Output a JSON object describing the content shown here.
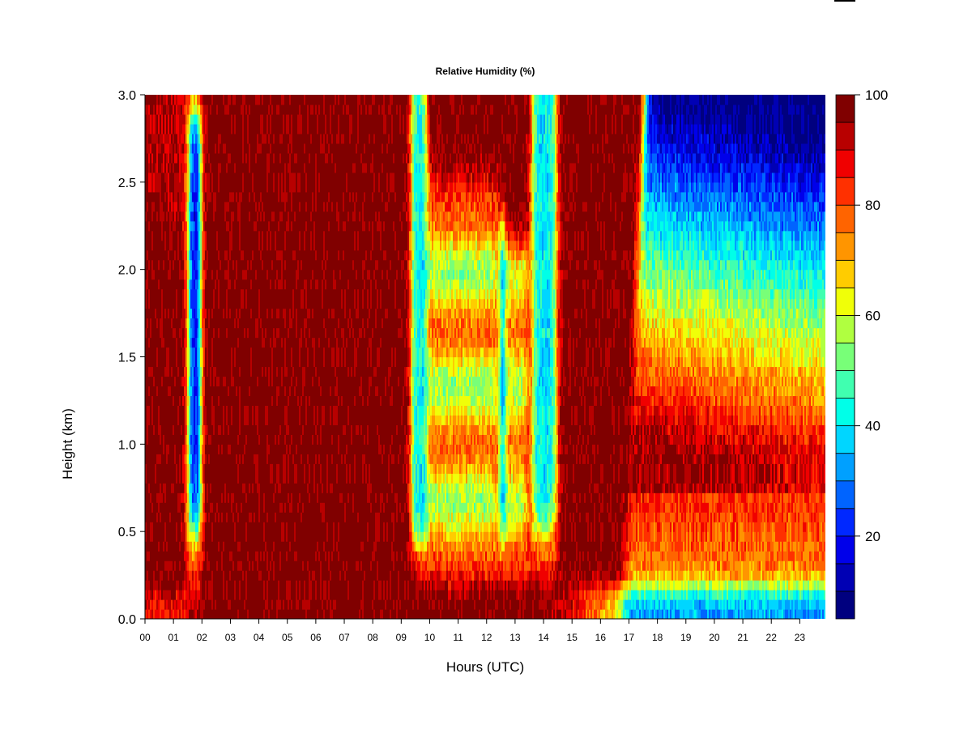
{
  "chart_data": {
    "type": "heatmap",
    "title": "Relative Humidity (%)",
    "xlabel": "Hours (UTC)",
    "ylabel": "Height (km)",
    "xlim": [
      0,
      23.9
    ],
    "ylim": [
      0,
      3
    ],
    "x_ticks": [
      "00",
      "01",
      "02",
      "03",
      "04",
      "05",
      "06",
      "07",
      "08",
      "09",
      "10",
      "11",
      "12",
      "13",
      "14",
      "15",
      "16",
      "17",
      "18",
      "19",
      "20",
      "21",
      "22",
      "23"
    ],
    "y_ticks": [
      "0.0",
      "0.5",
      "1.0",
      "1.5",
      "2.0",
      "2.5",
      "3.0"
    ],
    "colorbar": {
      "range": [
        5,
        100
      ],
      "ticks": [
        "20",
        "40",
        "60",
        "80",
        "100"
      ],
      "levels": [
        {
          "from": 5,
          "to": 10,
          "color": "#00007f"
        },
        {
          "from": 10,
          "to": 15,
          "color": "#0000b4"
        },
        {
          "from": 15,
          "to": 20,
          "color": "#0000ea"
        },
        {
          "from": 20,
          "to": 25,
          "color": "#0028ff"
        },
        {
          "from": 25,
          "to": 30,
          "color": "#0064ff"
        },
        {
          "from": 30,
          "to": 35,
          "color": "#00a0ff"
        },
        {
          "from": 35,
          "to": 40,
          "color": "#00d6ff"
        },
        {
          "from": 40,
          "to": 45,
          "color": "#00ffe8"
        },
        {
          "from": 45,
          "to": 50,
          "color": "#40ffb0"
        },
        {
          "from": 50,
          "to": 55,
          "color": "#78ff78"
        },
        {
          "from": 55,
          "to": 60,
          "color": "#b0ff40"
        },
        {
          "from": 60,
          "to": 65,
          "color": "#f0ff08"
        },
        {
          "from": 65,
          "to": 70,
          "color": "#ffcc00"
        },
        {
          "from": 70,
          "to": 75,
          "color": "#ff9500"
        },
        {
          "from": 75,
          "to": 80,
          "color": "#ff6400"
        },
        {
          "from": 80,
          "to": 85,
          "color": "#ff3000"
        },
        {
          "from": 85,
          "to": 90,
          "color": "#f00000"
        },
        {
          "from": 90,
          "to": 95,
          "color": "#b80000"
        },
        {
          "from": 95,
          "to": 100,
          "color": "#800000"
        }
      ]
    },
    "grid": false,
    "legend": "right colorbar"
  }
}
